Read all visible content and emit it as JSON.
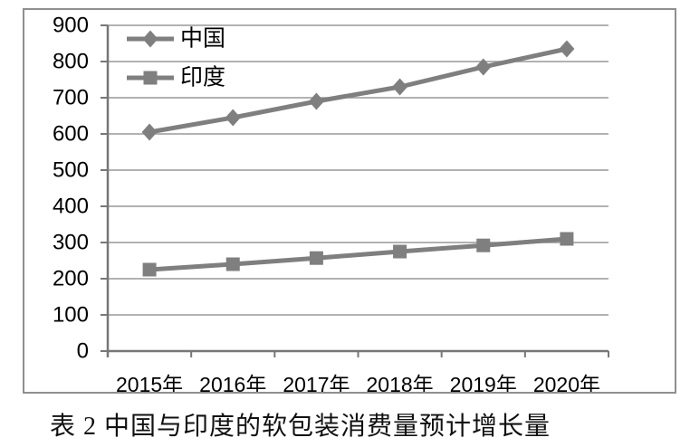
{
  "caption": "表 2 中国与印度的软包装消费量预计增长量",
  "chart_data": {
    "type": "line",
    "categories": [
      "2015年",
      "2016年",
      "2017年",
      "2018年",
      "2019年",
      "2020年"
    ],
    "series": [
      {
        "id": "china",
        "name": "中国",
        "marker": "diamond",
        "values": [
          605,
          645,
          690,
          730,
          785,
          835
        ]
      },
      {
        "id": "india",
        "name": "印度",
        "marker": "square",
        "values": [
          225,
          240,
          257,
          275,
          292,
          310
        ]
      }
    ],
    "ylim": [
      0,
      900
    ],
    "ytick_step": 100,
    "ytick_labels": [
      "0",
      "100",
      "200",
      "300",
      "400",
      "500",
      "600",
      "700",
      "800",
      "900"
    ],
    "grid": true,
    "legend_position": "top-left-inside",
    "colors": {
      "series": "#7f7f7f",
      "grid": "#999999",
      "axis": "#777777",
      "frame": "#8f8f8f",
      "text": "#000000"
    }
  }
}
